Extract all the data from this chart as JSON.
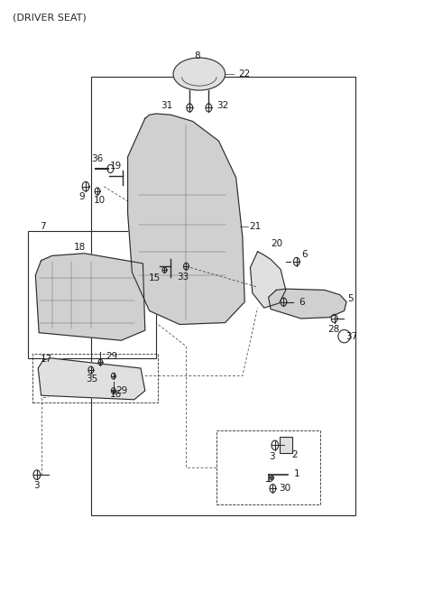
{
  "title": "(DRIVER SEAT)",
  "bg_color": "#ffffff",
  "line_color": "#2a2a2a",
  "label_color": "#1a1a1a",
  "label_8": "8",
  "label_22": "22",
  "label_31": "31",
  "label_32": "32",
  "label_21": "21",
  "label_36": "36",
  "label_19": "19",
  "label_9": "9",
  "label_10": "10",
  "label_15": "15",
  "label_20": "20",
  "label_6": "6",
  "label_7": "7",
  "label_18": "18",
  "label_17": "17",
  "label_29": "29",
  "label_35": "35",
  "label_16": "16",
  "label_5": "5",
  "label_28": "28",
  "label_37": "37",
  "label_33": "33",
  "label_1": "1",
  "label_30": "30",
  "label_2": "2",
  "label_3": "3"
}
